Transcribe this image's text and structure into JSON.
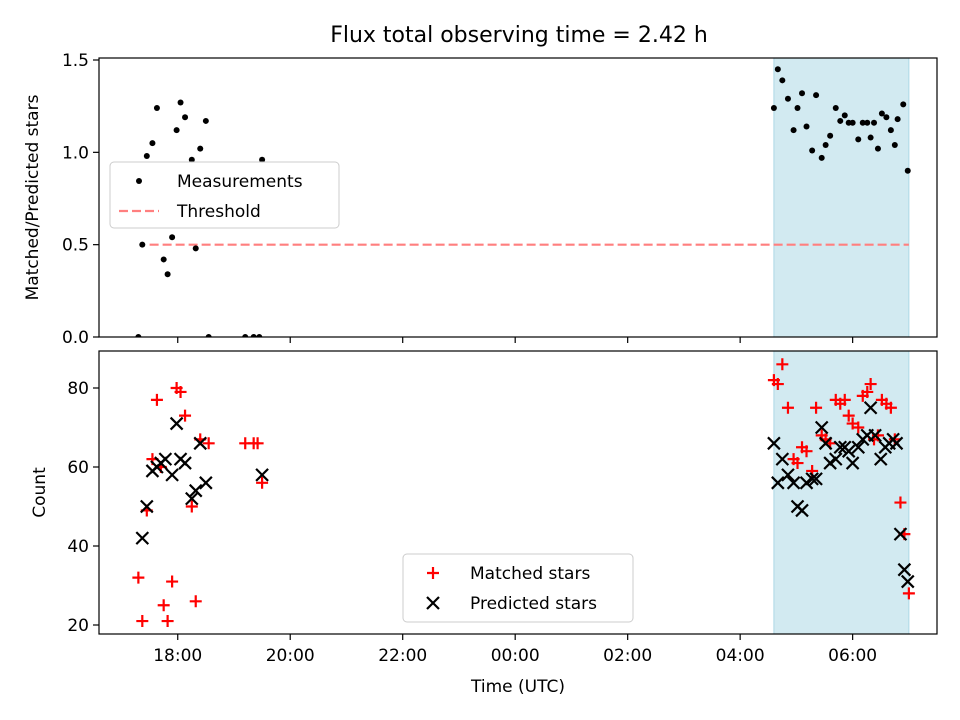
{
  "title": "Flux total observing time = 2.42 h",
  "colors": {
    "measurement": "#000000",
    "threshold": "#ff7f7f",
    "matched": "#ff0000",
    "predicted": "#000000",
    "shade": "#add8e6"
  },
  "chart_data": [
    {
      "type": "scatter",
      "ylabel": "Matched/Predicted stars",
      "ylim": [
        0,
        1.5
      ],
      "yticks": [
        "0.0",
        "0.5",
        "1.0",
        "1.5"
      ],
      "xlim": [
        16.6,
        31.5
      ],
      "xticks_hours": [
        18,
        20,
        22,
        24,
        26,
        28,
        30
      ],
      "shaded_interval": [
        28.6,
        31.0
      ],
      "legend": {
        "placement": "center-left",
        "entries": [
          "Measurements",
          "Threshold"
        ]
      },
      "threshold": {
        "name": "Threshold",
        "value": 0.5,
        "x_range": [
          17.5,
          31.0
        ]
      },
      "series": [
        {
          "name": "Measurements",
          "points": [
            [
              17.3,
              0.0
            ],
            [
              17.37,
              0.5
            ],
            [
              17.45,
              0.98
            ],
            [
              17.55,
              1.05
            ],
            [
              17.63,
              1.24
            ],
            [
              17.75,
              0.42
            ],
            [
              17.82,
              0.34
            ],
            [
              17.9,
              0.54
            ],
            [
              17.98,
              1.12
            ],
            [
              18.05,
              1.27
            ],
            [
              18.13,
              1.19
            ],
            [
              18.25,
              0.96
            ],
            [
              18.32,
              0.48
            ],
            [
              18.4,
              1.02
            ],
            [
              18.5,
              1.17
            ],
            [
              18.55,
              0.0
            ],
            [
              19.2,
              0.0
            ],
            [
              19.35,
              0.0
            ],
            [
              19.45,
              0.0
            ],
            [
              19.5,
              0.96
            ],
            [
              28.6,
              1.24
            ],
            [
              28.67,
              1.45
            ],
            [
              28.75,
              1.39
            ],
            [
              28.85,
              1.29
            ],
            [
              28.95,
              1.12
            ],
            [
              29.02,
              1.24
            ],
            [
              29.1,
              1.32
            ],
            [
              29.18,
              1.14
            ],
            [
              29.28,
              1.01
            ],
            [
              29.35,
              1.31
            ],
            [
              29.45,
              0.97
            ],
            [
              29.52,
              1.04
            ],
            [
              29.6,
              1.09
            ],
            [
              29.7,
              1.24
            ],
            [
              29.78,
              1.17
            ],
            [
              29.86,
              1.2
            ],
            [
              29.93,
              1.16
            ],
            [
              30.0,
              1.16
            ],
            [
              30.1,
              1.07
            ],
            [
              30.18,
              1.16
            ],
            [
              30.26,
              1.16
            ],
            [
              30.32,
              1.08
            ],
            [
              30.38,
              1.16
            ],
            [
              30.45,
              1.02
            ],
            [
              30.52,
              1.21
            ],
            [
              30.6,
              1.19
            ],
            [
              30.68,
              1.12
            ],
            [
              30.75,
              1.04
            ],
            [
              30.8,
              1.18
            ],
            [
              30.9,
              1.26
            ],
            [
              30.98,
              0.9
            ]
          ]
        }
      ]
    },
    {
      "type": "scatter",
      "ylabel": "Count",
      "xlabel": "Time (UTC)",
      "ylim": [
        18,
        90
      ],
      "yticks": [
        "20",
        "40",
        "60",
        "80"
      ],
      "xlim": [
        16.6,
        31.5
      ],
      "xticks_hours": [
        18,
        20,
        22,
        24,
        26,
        28,
        30
      ],
      "xtick_labels": [
        "18:00",
        "20:00",
        "22:00",
        "00:00",
        "02:00",
        "04:00",
        "06:00"
      ],
      "shaded_interval": [
        28.6,
        31.0
      ],
      "legend": {
        "placement": "lower-center",
        "entries": [
          "Matched stars",
          "Predicted stars"
        ]
      },
      "series": [
        {
          "name": "Matched stars",
          "marker": "+",
          "points": [
            [
              17.3,
              32
            ],
            [
              17.37,
              21
            ],
            [
              17.45,
              49
            ],
            [
              17.55,
              62
            ],
            [
              17.63,
              77
            ],
            [
              17.7,
              60
            ],
            [
              17.75,
              25
            ],
            [
              17.82,
              21
            ],
            [
              17.9,
              31
            ],
            [
              17.98,
              80
            ],
            [
              18.05,
              79
            ],
            [
              18.13,
              73
            ],
            [
              18.25,
              50
            ],
            [
              18.32,
              26
            ],
            [
              18.4,
              67
            ],
            [
              18.55,
              66
            ],
            [
              19.2,
              66
            ],
            [
              19.35,
              66
            ],
            [
              19.42,
              66
            ],
            [
              19.5,
              56
            ],
            [
              28.6,
              82
            ],
            [
              28.67,
              81
            ],
            [
              28.75,
              86
            ],
            [
              28.85,
              75
            ],
            [
              28.95,
              62
            ],
            [
              29.02,
              61
            ],
            [
              29.1,
              65
            ],
            [
              29.18,
              64
            ],
            [
              29.28,
              59
            ],
            [
              29.35,
              75
            ],
            [
              29.45,
              68
            ],
            [
              29.52,
              67
            ],
            [
              29.6,
              66
            ],
            [
              29.7,
              77
            ],
            [
              29.78,
              76
            ],
            [
              29.86,
              77
            ],
            [
              29.93,
              73
            ],
            [
              30.0,
              71
            ],
            [
              30.1,
              70
            ],
            [
              30.18,
              78
            ],
            [
              30.26,
              79
            ],
            [
              30.32,
              81
            ],
            [
              30.38,
              67
            ],
            [
              30.45,
              68
            ],
            [
              30.52,
              77
            ],
            [
              30.6,
              76
            ],
            [
              30.68,
              75
            ],
            [
              30.75,
              67
            ],
            [
              30.85,
              51
            ],
            [
              30.92,
              43
            ],
            [
              31.0,
              28
            ]
          ]
        },
        {
          "name": "Predicted stars",
          "marker": "x",
          "points": [
            [
              17.37,
              42
            ],
            [
              17.45,
              50
            ],
            [
              17.55,
              59
            ],
            [
              17.63,
              60
            ],
            [
              17.7,
              61
            ],
            [
              17.78,
              62
            ],
            [
              17.9,
              58
            ],
            [
              17.98,
              71
            ],
            [
              18.05,
              62
            ],
            [
              18.13,
              61
            ],
            [
              18.25,
              52
            ],
            [
              18.32,
              54
            ],
            [
              18.4,
              66
            ],
            [
              18.5,
              56
            ],
            [
              19.5,
              58
            ],
            [
              28.6,
              66
            ],
            [
              28.67,
              56
            ],
            [
              28.75,
              62
            ],
            [
              28.85,
              58
            ],
            [
              28.95,
              56
            ],
            [
              29.02,
              50
            ],
            [
              29.1,
              49
            ],
            [
              29.18,
              56
            ],
            [
              29.28,
              57
            ],
            [
              29.35,
              57
            ],
            [
              29.45,
              70
            ],
            [
              29.52,
              66
            ],
            [
              29.6,
              61
            ],
            [
              29.7,
              62
            ],
            [
              29.78,
              65
            ],
            [
              29.86,
              65
            ],
            [
              29.93,
              64
            ],
            [
              30.0,
              61
            ],
            [
              30.1,
              65
            ],
            [
              30.18,
              67
            ],
            [
              30.26,
              68
            ],
            [
              30.32,
              75
            ],
            [
              30.4,
              68
            ],
            [
              30.5,
              62
            ],
            [
              30.58,
              65
            ],
            [
              30.65,
              66
            ],
            [
              30.72,
              67
            ],
            [
              30.78,
              66
            ],
            [
              30.85,
              43
            ],
            [
              30.92,
              34
            ],
            [
              30.98,
              31
            ]
          ]
        }
      ]
    }
  ]
}
